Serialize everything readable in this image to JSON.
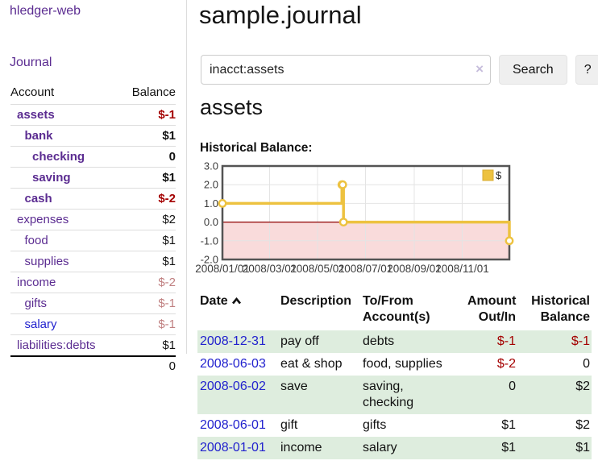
{
  "colors": {
    "link_purple": "#5B2C91",
    "link_blue": "#2222CE",
    "negative_strong": "#A40000",
    "negative_faded": "#C08081",
    "row_stripe_green": "#DEEDDE",
    "button_bg": "#EFEFEF"
  },
  "sidebar": {
    "app_title": "hledger-web",
    "journal_label": "Journal",
    "accounts": {
      "header_account": "Account",
      "header_balance": "Balance",
      "rows": [
        {
          "name": "assets",
          "depth": 1,
          "bold": true,
          "link_color": "purple",
          "balance": "$-1",
          "balance_style": "neg-strong"
        },
        {
          "name": "bank",
          "depth": 2,
          "bold": true,
          "link_color": "purple",
          "balance": "$1",
          "balance_style": "pos"
        },
        {
          "name": "checking",
          "depth": 3,
          "bold": true,
          "link_color": "purple",
          "balance": "0",
          "balance_style": "pos"
        },
        {
          "name": "saving",
          "depth": 3,
          "bold": true,
          "link_color": "purple",
          "balance": "$1",
          "balance_style": "pos"
        },
        {
          "name": "cash",
          "depth": 2,
          "bold": true,
          "link_color": "purple",
          "balance": "$-2",
          "balance_style": "neg-strong"
        },
        {
          "name": "expenses",
          "depth": 1,
          "bold": false,
          "link_color": "purple",
          "balance": "$2",
          "balance_style": "pos"
        },
        {
          "name": "food",
          "depth": 2,
          "bold": false,
          "link_color": "purple",
          "balance": "$1",
          "balance_style": "pos"
        },
        {
          "name": "supplies",
          "depth": 2,
          "bold": false,
          "link_color": "purple",
          "balance": "$1",
          "balance_style": "pos"
        },
        {
          "name": "income",
          "depth": 1,
          "bold": false,
          "link_color": "purple",
          "balance": "$-2",
          "balance_style": "neg-faded"
        },
        {
          "name": "gifts",
          "depth": 2,
          "bold": false,
          "link_color": "purple",
          "balance": "$-1",
          "balance_style": "neg-faded"
        },
        {
          "name": "salary",
          "depth": 2,
          "bold": false,
          "link_color": "blue",
          "balance": "$-1",
          "balance_style": "neg-faded"
        },
        {
          "name": "liabilities:debts",
          "depth": 1,
          "bold": false,
          "link_color": "purple",
          "balance": "$1",
          "balance_style": "pos"
        }
      ],
      "total": "0"
    }
  },
  "header": {
    "title": "sample.journal"
  },
  "search": {
    "value": "inacct:assets",
    "clear_icon": "×",
    "search_label": "Search",
    "help_label": "?"
  },
  "main": {
    "account_heading": "assets",
    "chart_label": "Historical Balance:"
  },
  "chart_data": {
    "type": "line",
    "title": "Historical Balance:",
    "step": true,
    "series": [
      {
        "name": "$",
        "color": "#EDC240",
        "points": [
          [
            "2008-01-01",
            1
          ],
          [
            "2008-06-01",
            2
          ],
          [
            "2008-06-02",
            2
          ],
          [
            "2008-06-03",
            0
          ],
          [
            "2008-12-31",
            -1
          ]
        ]
      }
    ],
    "xlim": [
      "2008-01-01",
      "2008-12-31"
    ],
    "ylim": [
      -2,
      3
    ],
    "xticks": [
      "2008/01/01",
      "2008/03/01",
      "2008/05/01",
      "2008/07/01",
      "2008/09/01",
      "2008/11/01"
    ],
    "yticks": [
      3.0,
      2.0,
      1.0,
      0.0,
      -1.0,
      -2.0
    ],
    "grid": true,
    "legend_position": "top-right",
    "negative_region_color": "#F9DBDB",
    "zero_line_color": "#8E0000",
    "plot_border_color": "#545454",
    "grid_color": "#E4E4E4",
    "marker": "open-circle"
  },
  "register": {
    "headers": {
      "date": "Date",
      "description": "Description",
      "tofrom": "To/From Account(s)",
      "amount": "Amount Out/In",
      "balance": "Historical Balance"
    },
    "rows": [
      {
        "date": "2008-12-31",
        "description": "pay off",
        "accounts": "debts",
        "amount": "$-1",
        "amount_neg": true,
        "balance": "$-1",
        "balance_neg": true
      },
      {
        "date": "2008-06-03",
        "description": "eat & shop",
        "accounts": "food, supplies",
        "amount": "$-2",
        "amount_neg": true,
        "balance": "0",
        "balance_neg": false
      },
      {
        "date": "2008-06-02",
        "description": "save",
        "accounts": "saving, checking",
        "amount": "0",
        "amount_neg": false,
        "balance": "$2",
        "balance_neg": false
      },
      {
        "date": "2008-06-01",
        "description": "gift",
        "accounts": "gifts",
        "amount": "$1",
        "amount_neg": false,
        "balance": "$2",
        "balance_neg": false
      },
      {
        "date": "2008-01-01",
        "description": "income",
        "accounts": "salary",
        "amount": "$1",
        "amount_neg": false,
        "balance": "$1",
        "balance_neg": false
      }
    ]
  }
}
